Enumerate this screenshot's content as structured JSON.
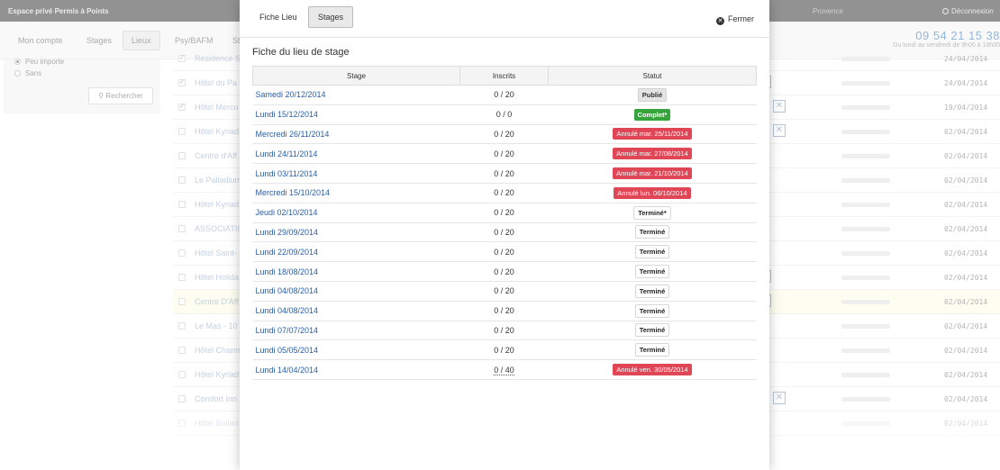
{
  "app": {
    "brand": "Espace privé Permis à Points",
    "user": "Provence",
    "logout_label": "Déconnexion",
    "phone": "09 54 21 15 38",
    "hours": "Du lundi au vendredi de 9h00 à 18h00"
  },
  "nav": {
    "items": [
      {
        "label": "Mon compte"
      },
      {
        "label": "Stages"
      },
      {
        "label": "Lieux"
      },
      {
        "label": "Psy/BAFM"
      },
      {
        "label": "St"
      }
    ]
  },
  "sidebar": {
    "radio_peu": "Peu importe",
    "radio_sans": "Sans",
    "search_label": "Rechercher"
  },
  "background_rows": [
    {
      "name": "Résidence S",
      "date": "24/04/2014",
      "checked": true
    },
    {
      "name": "Hôtel du Pa",
      "date": "24/04/2014",
      "checked": true
    },
    {
      "name": "Hôtel Mercu",
      "date": "19/04/2014",
      "checked": true
    },
    {
      "name": "Hôtel Kyriad",
      "date": "02/04/2014",
      "checked": false
    },
    {
      "name": "Centre d'Aff",
      "date": "02/04/2014",
      "checked": false
    },
    {
      "name": "Le Palladium",
      "date": "02/04/2014",
      "checked": false
    },
    {
      "name": "Hôtel Kyriad",
      "date": "02/04/2014",
      "checked": false
    },
    {
      "name": "ASSOCIATION",
      "date": "02/04/2014",
      "checked": false
    },
    {
      "name": "Hôtel Saint-",
      "date": "02/04/2014",
      "checked": false
    },
    {
      "name": "Hôtel Holida",
      "date": "02/04/2014",
      "checked": false
    },
    {
      "name": "Centre D'Aff",
      "date": "02/04/2014",
      "checked": false
    },
    {
      "name": "Le Mas - 10",
      "date": "02/04/2014",
      "checked": false
    },
    {
      "name": "Hôtel Charm",
      "date": "02/04/2014",
      "checked": false
    },
    {
      "name": "Hôtel Kyriad",
      "date": "02/04/2014",
      "checked": false
    },
    {
      "name": "Comfort Inn",
      "date": "02/04/2014",
      "checked": false
    },
    {
      "name": "Hôtel Ballad",
      "date": "02/04/2014",
      "checked": false
    }
  ],
  "modal": {
    "tab_fiche": "Fiche Lieu",
    "tab_stages": "Stages",
    "close_label": "Fermer",
    "title": "Fiche du lieu de stage",
    "columns": {
      "stage": "Stage",
      "inscrits": "Inscrits",
      "statut": "Statut"
    },
    "rows": [
      {
        "stage": "Samedi 20/12/2014",
        "inscrits": "0 / 20",
        "statut": "Publié",
        "kind": "publie"
      },
      {
        "stage": "Lundi 15/12/2014",
        "inscrits": "0 / 0",
        "statut": "Complet*",
        "kind": "complet"
      },
      {
        "stage": "Mercredi 26/11/2014",
        "inscrits": "0 / 20",
        "statut": "Annulé mar. 25/11/2014",
        "kind": "annule"
      },
      {
        "stage": "Lundi 24/11/2014",
        "inscrits": "0 / 20",
        "statut": "Annulé mar. 27/08/2014",
        "kind": "annule"
      },
      {
        "stage": "Lundi 03/11/2014",
        "inscrits": "0 / 20",
        "statut": "Annulé mar. 21/10/2014",
        "kind": "annule"
      },
      {
        "stage": "Mercredi 15/10/2014",
        "inscrits": "0 / 20",
        "statut": "Annulé lun. 06/10/2014",
        "kind": "annule"
      },
      {
        "stage": "Jeudi 02/10/2014",
        "inscrits": "0 / 20",
        "statut": "Terminé*",
        "kind": "termine"
      },
      {
        "stage": "Lundi 29/09/2014",
        "inscrits": "0 / 20",
        "statut": "Terminé",
        "kind": "termine"
      },
      {
        "stage": "Lundi 22/09/2014",
        "inscrits": "0 / 20",
        "statut": "Terminé",
        "kind": "termine"
      },
      {
        "stage": "Lundi 18/08/2014",
        "inscrits": "0 / 20",
        "statut": "Terminé",
        "kind": "termine"
      },
      {
        "stage": "Lundi 04/08/2014",
        "inscrits": "0 / 20",
        "statut": "Terminé",
        "kind": "termine"
      },
      {
        "stage": "Lundi 04/08/2014",
        "inscrits": "0 / 20",
        "statut": "Terminé",
        "kind": "termine"
      },
      {
        "stage": "Lundi 07/07/2014",
        "inscrits": "0 / 20",
        "statut": "Terminé",
        "kind": "termine"
      },
      {
        "stage": "Lundi 05/05/2014",
        "inscrits": "0 / 20",
        "statut": "Terminé",
        "kind": "termine"
      },
      {
        "stage": "Lundi 14/04/2014",
        "inscrits": "0 / 40",
        "statut": "Annulé ven. 30/05/2014",
        "kind": "annule"
      }
    ]
  },
  "colors": {
    "link": "#2a5fa3",
    "complet": "#35a53b",
    "annule": "#e04656",
    "phone": "#3a7abf"
  }
}
